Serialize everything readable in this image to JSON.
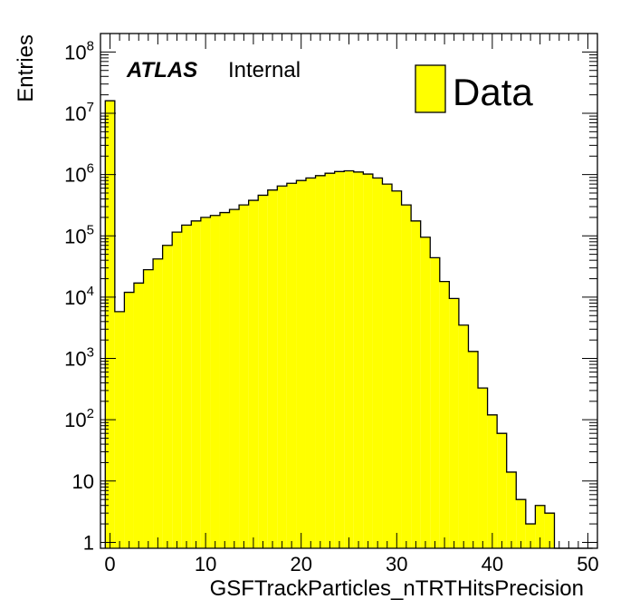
{
  "chart_data": {
    "type": "bar",
    "subtype": "histogram",
    "xlabel": "GSFTrackParticles_nTRTHitsPrecision",
    "ylabel": "Entries",
    "yscale": "log",
    "xlim": [
      -1,
      51
    ],
    "ylim": [
      0.8,
      200000000
    ],
    "x_ticks": [
      {
        "value": 0,
        "label": "0"
      },
      {
        "value": 10,
        "label": "10"
      },
      {
        "value": 20,
        "label": "20"
      },
      {
        "value": 30,
        "label": "30"
      },
      {
        "value": 40,
        "label": "40"
      },
      {
        "value": 50,
        "label": "50"
      }
    ],
    "y_ticks": [
      {
        "value": 1,
        "base": "1",
        "exp": ""
      },
      {
        "value": 10,
        "base": "10",
        "exp": ""
      },
      {
        "value": 100,
        "base": "10",
        "exp": "2"
      },
      {
        "value": 1000,
        "base": "10",
        "exp": "3"
      },
      {
        "value": 10000,
        "base": "10",
        "exp": "4"
      },
      {
        "value": 100000,
        "base": "10",
        "exp": "5"
      },
      {
        "value": 1000000,
        "base": "10",
        "exp": "6"
      },
      {
        "value": 10000000,
        "base": "10",
        "exp": "7"
      },
      {
        "value": 100000000,
        "base": "10",
        "exp": "8"
      }
    ],
    "bin_edges_start": -0.5,
    "bin_width": 1,
    "values": [
      16000000,
      5800,
      12000,
      17000,
      28000,
      42000,
      70000,
      115000,
      150000,
      175000,
      200000,
      215000,
      240000,
      270000,
      320000,
      380000,
      460000,
      560000,
      650000,
      720000,
      800000,
      880000,
      960000,
      1050000,
      1120000,
      1150000,
      1100000,
      1020000,
      880000,
      700000,
      540000,
      320000,
      175000,
      95000,
      44000,
      18000,
      9500,
      3500,
      1300,
      330,
      120,
      60,
      14,
      5,
      2,
      4,
      3,
      0,
      0,
      0,
      0
    ],
    "grid": false,
    "legend": [
      {
        "name": "Data",
        "color": "#ffff00",
        "position": "top-right"
      }
    ],
    "fill_color": "#ffff00",
    "line_color": "#000000"
  },
  "atlas_label": {
    "bold": "ATLAS",
    "text": "Internal"
  }
}
